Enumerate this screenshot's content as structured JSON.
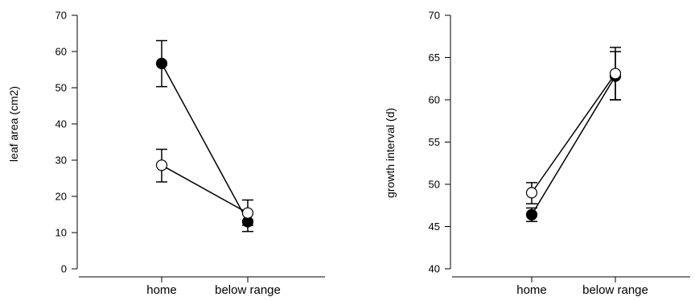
{
  "chart_data": [
    {
      "type": "line",
      "title": "",
      "xlabel": "",
      "ylabel": "leaf area (cm2)",
      "categories": [
        "home",
        "below range"
      ],
      "ylim": [
        0,
        70
      ],
      "yticks": [
        0,
        10,
        20,
        30,
        40,
        50,
        60,
        70
      ],
      "grid": false,
      "legend": "none",
      "series": [
        {
          "marker": "filled-circle",
          "values": [
            56.7,
            13.0
          ],
          "error_low": [
            50.3,
            10.3
          ],
          "error_high": [
            63.0,
            15.7
          ]
        },
        {
          "marker": "open-circle",
          "values": [
            28.6,
            15.4
          ],
          "error_low": [
            24.0,
            12.0
          ],
          "error_high": [
            33.0,
            19.0
          ]
        }
      ]
    },
    {
      "type": "line",
      "title": "",
      "xlabel": "",
      "ylabel": "growth interval (d)",
      "categories": [
        "home",
        "below range"
      ],
      "ylim": [
        40,
        70
      ],
      "yticks": [
        40,
        45,
        50,
        55,
        60,
        65,
        70
      ],
      "grid": false,
      "legend": "none",
      "series": [
        {
          "marker": "filled-circle",
          "values": [
            46.4,
            62.8
          ],
          "error_low": [
            45.6,
            60.0
          ],
          "error_high": [
            47.2,
            65.7
          ]
        },
        {
          "marker": "open-circle",
          "values": [
            49.0,
            63.1
          ],
          "error_low": [
            47.7,
            60.0
          ],
          "error_high": [
            50.2,
            66.2
          ]
        }
      ]
    }
  ],
  "colors": {
    "ink": "#000000",
    "open_fill": "#ffffff",
    "background": "#ffffff"
  }
}
